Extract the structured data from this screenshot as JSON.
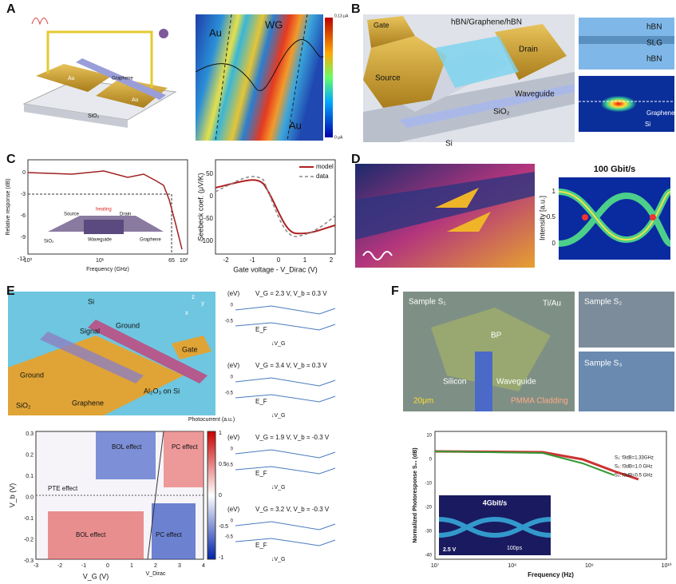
{
  "A": {
    "label": "A",
    "graphene": "Graphene",
    "au1": "Au",
    "au2": "Au",
    "sio2": "SiO₂",
    "map_au1": "Au",
    "map_wg": "WG",
    "map_au2": "Au",
    "cb_max": "0.13 μA",
    "cb_min": "0 μA"
  },
  "B": {
    "label": "B",
    "gate": "Gate",
    "stack": "hBN/Graphene/hBN",
    "source": "Source",
    "drain": "Drain",
    "sio2": "SiO₂",
    "waveguide": "Waveguide",
    "si": "Si",
    "layers": [
      "hBN",
      "SLG",
      "hBN"
    ],
    "mode_graphene": "Graphene",
    "mode_si": "Si"
  },
  "C": {
    "label": "C",
    "left": {
      "ylabel": "Relative response (dB)",
      "yticks": [
        "0",
        "-3",
        "-6",
        "-9",
        "-12"
      ],
      "xticks": [
        "10⁰",
        "10¹",
        "65",
        "10²"
      ],
      "xlabel": "Frequency (GHz)",
      "inset": [
        "Source",
        "heating",
        "Drain",
        "SiO₂",
        "Waveguide",
        "Graphene"
      ]
    },
    "right": {
      "ylabel": "Seebeck coef. (μV/K)",
      "yticks": [
        "50",
        "0",
        "-50",
        "-100"
      ],
      "xticks": [
        "-2",
        "-1",
        "0",
        "1",
        "2"
      ],
      "xlabel": "Gate voltage - V_Dirac (V)",
      "legend": [
        "model",
        "data"
      ]
    }
  },
  "D": {
    "label": "D",
    "title": "100 Gbit/s",
    "ylabel": "Intensity [a.u.]",
    "yticks": [
      "1",
      "0.5",
      "0"
    ]
  },
  "E": {
    "label": "E",
    "device": [
      "Si",
      "Signal",
      "Ground",
      "Gate",
      "Ground",
      "Al₂O₃ on Si",
      "Graphene",
      "SiO₂"
    ],
    "axes3d": [
      "z",
      "y",
      "x"
    ],
    "map": {
      "effects": [
        "BOL effect",
        "PC effect",
        "PTE effect",
        "BOL effect",
        "PC effect"
      ],
      "ylabel": "V_b (V)",
      "yticks": [
        "0.3",
        "0.2",
        "0.1",
        "0.0",
        "-0.1",
        "-0.2",
        "-0.3"
      ],
      "xticks": [
        "-3",
        "-2",
        "-1",
        "0",
        "1",
        "2",
        "3",
        "4"
      ],
      "xlabel": "V_G (V)",
      "dirac": "V_Dirac",
      "cb_title": "Photocurrent (a.u.)",
      "cb_ticks": [
        "1",
        "0.5",
        "0",
        "-0.5",
        "-1"
      ]
    },
    "bands": [
      {
        "unit": "(eV)",
        "cond": "V_G = 2.3 V, V_b = 0.3 V"
      },
      {
        "unit": "(eV)",
        "cond": "V_G = 3.4 V, V_b = 0.3 V"
      },
      {
        "unit": "(eV)",
        "cond": "V_G = 1.9 V, V_b = -0.3 V"
      },
      {
        "unit": "(eV)",
        "cond": "V_G = 3.2 V, V_b = -0.3 V"
      }
    ],
    "band_ticks": [
      "0",
      "-0.5"
    ],
    "fermi": "E_F",
    "gate_arrow": "↓V_G"
  },
  "F": {
    "label": "F",
    "micro": [
      "Sample S₁",
      "Ti/Au",
      "BP",
      "Silicon",
      "Waveguide",
      "20μm",
      "PMMA Cladding"
    ],
    "samples": [
      "Sample S₂",
      "Sample S₃"
    ],
    "plot": {
      "ylabel": "Normalized Photoresponse S₂₁ (dB)",
      "yticks": [
        "10",
        "0",
        "-10",
        "-20",
        "-30",
        "-40"
      ],
      "xticks": [
        "10⁷",
        "10⁸",
        "10⁹",
        "10¹⁰"
      ],
      "xlabel": "Frequency (Hz)",
      "legend": [
        "S₁: f3dB=1.33GHz",
        "S₂: f3dB=1.0 GHz",
        "S₃: f3dB=0.5 GHz"
      ],
      "inset": [
        "4Gbit/s",
        "2.5 V",
        "100ps"
      ]
    }
  }
}
